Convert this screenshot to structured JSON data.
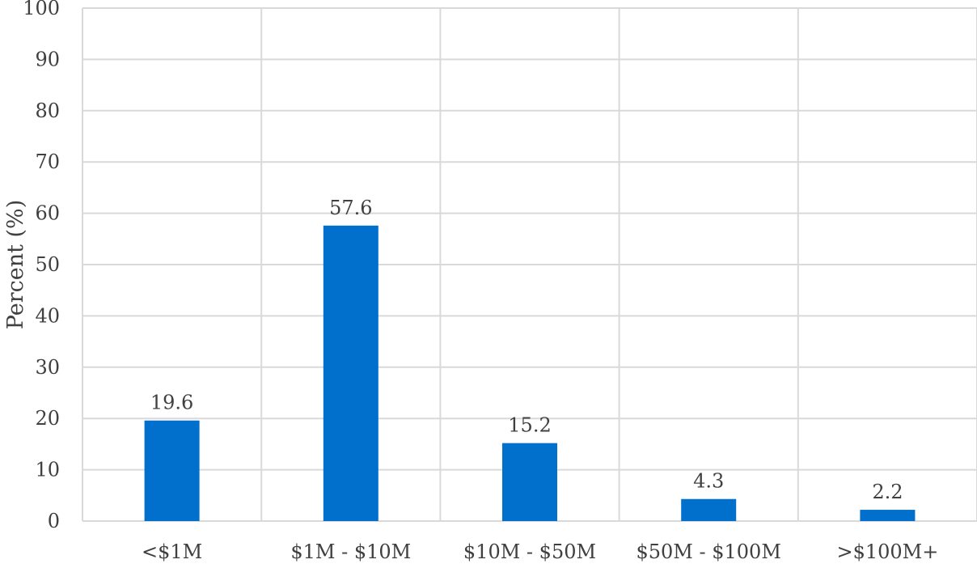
{
  "chart_data": {
    "type": "bar",
    "title": "",
    "xlabel": "",
    "ylabel": "Percent (%)",
    "categories": [
      "<$1M",
      "$1M - $10M",
      "$10M - $50M",
      "$50M - $100M",
      ">$100M+"
    ],
    "series": [
      {
        "values": [
          19.6,
          57.6,
          15.2,
          4.3,
          2.2
        ]
      }
    ],
    "data_labels": [
      "19.6",
      "57.6",
      "15.2",
      "4.3",
      "2.2"
    ],
    "ylim": [
      0,
      100
    ],
    "yticks": [
      0,
      10,
      20,
      30,
      40,
      50,
      60,
      70,
      80,
      90,
      100
    ],
    "ytick_labels": [
      "0",
      "10",
      "20",
      "30",
      "40",
      "50",
      "60",
      "70",
      "80",
      "90",
      "100"
    ],
    "grid": {
      "horizontal": true,
      "vertical": true
    },
    "legend": "none",
    "colors": {
      "bar": "#0070CC",
      "grid": "#D9D9D9",
      "text": "#404040"
    }
  }
}
